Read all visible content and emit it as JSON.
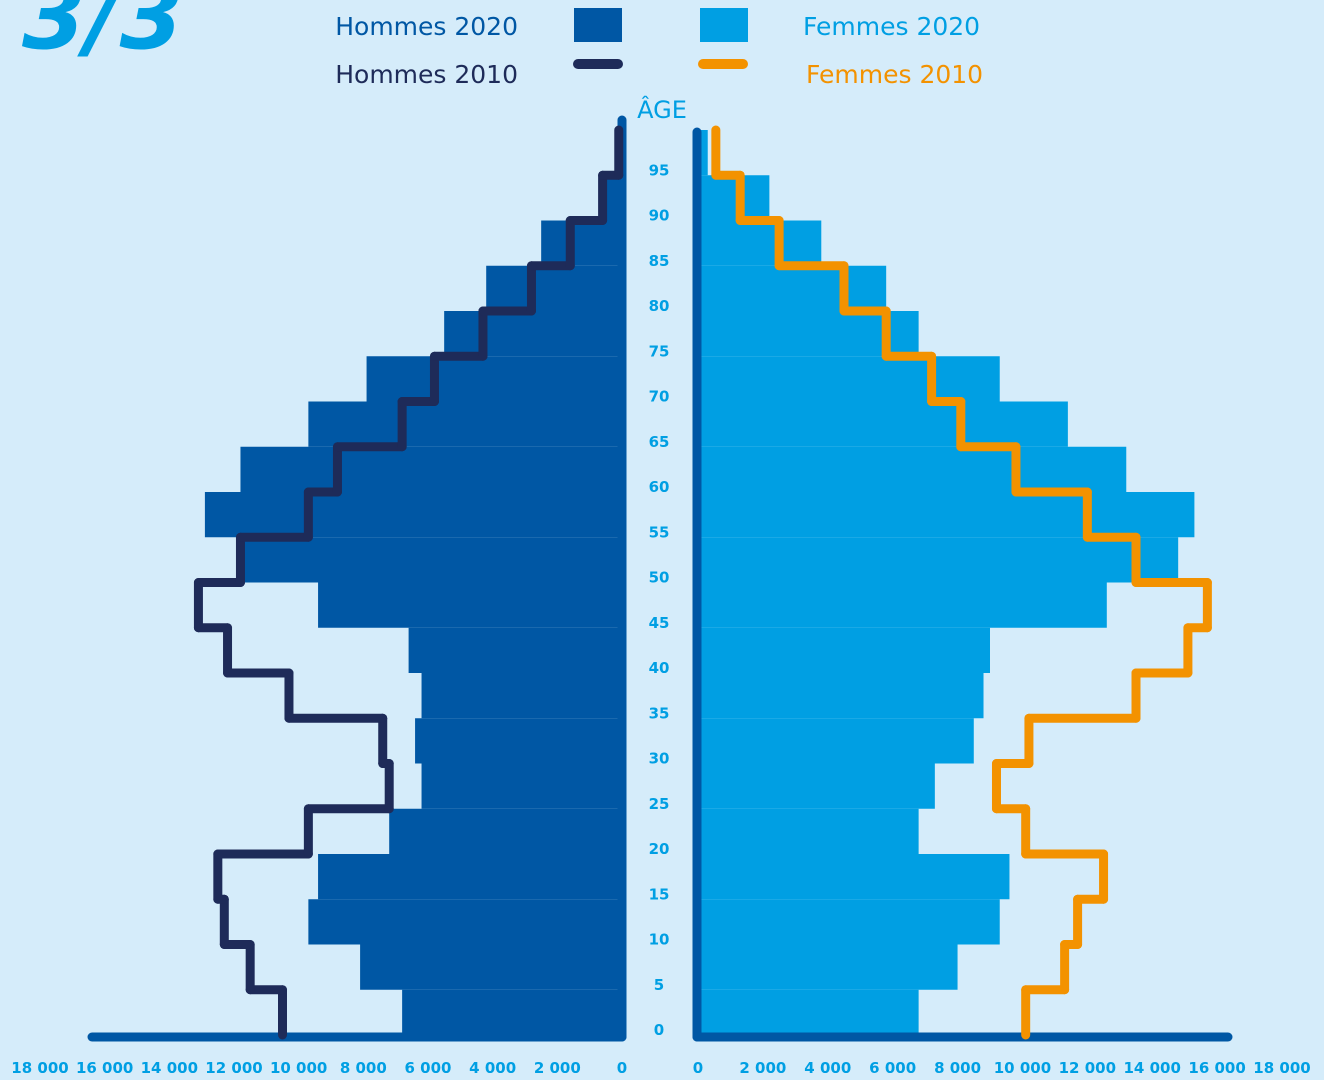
{
  "annotation": "3/3",
  "chart_data": [
    {
      "type": "bar",
      "side": "left",
      "ylabel": "ÂGE",
      "xlim": [
        0,
        18000
      ],
      "xticks": [
        0,
        {
          "value": 2000,
          "label": "2 000"
        },
        {
          "value": 4000,
          "label": "4 000"
        },
        {
          "value": 6000,
          "label": "6 000"
        },
        {
          "value": 8000,
          "label": "8 000"
        },
        {
          "value": 10000,
          "label": "10 000"
        },
        {
          "value": 12000,
          "label": "12 000"
        },
        {
          "value": 14000,
          "label": "14 000"
        },
        {
          "value": 16000,
          "label": "16 000"
        },
        {
          "value": 18000,
          "label": "18 000"
        }
      ],
      "ylim": [
        0,
        100
      ],
      "yticks": [
        0,
        5,
        10,
        15,
        20,
        25,
        30,
        35,
        40,
        45,
        50,
        55,
        60,
        65,
        70,
        75,
        80,
        85,
        90,
        95
      ],
      "series": [
        {
          "name": "Hommes 2020",
          "style": "bar",
          "color": "#0057a4",
          "values": [
            6800,
            8100,
            9700,
            9400,
            7200,
            6200,
            6400,
            6200,
            6600,
            9400,
            11700,
            12900,
            11800,
            9700,
            7900,
            5500,
            4200,
            2500,
            700,
            200
          ]
        },
        {
          "name": "Hommes 2010",
          "style": "step",
          "color": "#1e2b59",
          "values": [
            10500,
            11500,
            12300,
            12500,
            9700,
            7200,
            7400,
            10300,
            12200,
            13100,
            11800,
            9700,
            8800,
            6800,
            5800,
            4300,
            2800,
            1600,
            600,
            100
          ]
        }
      ]
    },
    {
      "type": "bar",
      "side": "right",
      "xlim": [
        0,
        18000
      ],
      "xticks": [
        0,
        {
          "value": 2000,
          "label": "2 000"
        },
        {
          "value": 4000,
          "label": "4 000"
        },
        {
          "value": 6000,
          "label": "6 000"
        },
        {
          "value": 8000,
          "label": "8 000"
        },
        {
          "value": 10000,
          "label": "10 000"
        },
        {
          "value": 12000,
          "label": "12 000"
        },
        {
          "value": 14000,
          "label": "14 000"
        },
        {
          "value": 16000,
          "label": "16 000"
        },
        {
          "value": 18000,
          "label": "18 000"
        }
      ],
      "ylim": [
        0,
        100
      ],
      "yticks": [
        0,
        5,
        10,
        15,
        20,
        25,
        30,
        35,
        40,
        45,
        50,
        55,
        60,
        65,
        70,
        75,
        80,
        85,
        90,
        95
      ],
      "series": [
        {
          "name": "Femmes 2020",
          "style": "bar",
          "color": "#009fe3",
          "values": [
            6800,
            8000,
            9300,
            9600,
            6800,
            7300,
            8500,
            8800,
            9000,
            12600,
            14800,
            15300,
            13200,
            11400,
            9300,
            6800,
            5800,
            3800,
            2200,
            300
          ]
        },
        {
          "name": "Femmes 2010",
          "style": "step",
          "color": "#f39200",
          "values": [
            10100,
            11300,
            11700,
            12500,
            10100,
            9200,
            10200,
            13500,
            15100,
            15700,
            13500,
            12000,
            9800,
            8100,
            7200,
            5800,
            4500,
            2500,
            1300,
            550
          ]
        }
      ]
    }
  ]
}
